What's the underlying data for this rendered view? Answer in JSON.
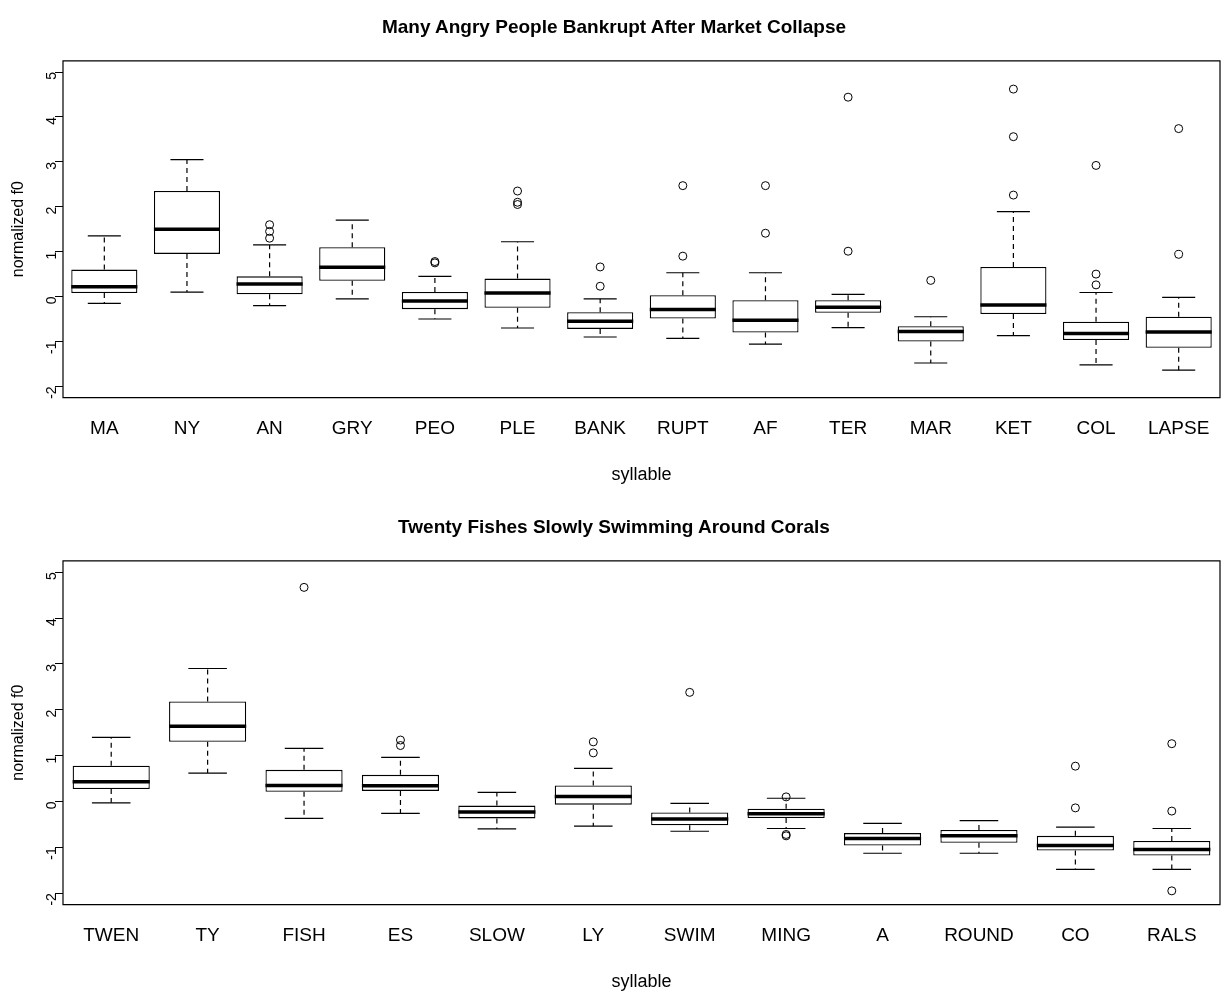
{
  "chart_data": [
    {
      "type": "box",
      "title": "Many Angry People Bankrupt After Market Collapse",
      "xlabel": "syllable",
      "ylabel": "normalized f0",
      "categories": [
        "MA",
        "NY",
        "AN",
        "GRY",
        "PEO",
        "PLE",
        "BANK",
        "RUPT",
        "AF",
        "TER",
        "MAR",
        "KET",
        "COL",
        "LAPSE"
      ],
      "boxes": [
        {
          "low": -0.15,
          "q1": 0.08,
          "median": 0.22,
          "q3": 0.6,
          "high": 1.35
        },
        {
          "low": 0.1,
          "q1": 0.95,
          "median": 1.5,
          "q3": 2.35,
          "high": 3.05
        },
        {
          "low": -0.2,
          "q1": 0.05,
          "median": 0.28,
          "q3": 0.45,
          "high": 1.15,
          "outliers": [
            1.6,
            1.45,
            1.3
          ]
        },
        {
          "low": -0.05,
          "q1": 0.35,
          "median": 0.65,
          "q3": 1.1,
          "high": 1.7
        },
        {
          "low": -0.5,
          "q1": -0.28,
          "median": -0.1,
          "q3": 0.1,
          "high": 0.45,
          "outliers": [
            0.78,
            0.75
          ]
        },
        {
          "low": -0.7,
          "q1": -0.25,
          "median": 0.08,
          "q3": 0.4,
          "high": 1.22,
          "outliers": [
            2.35,
            2.1,
            2.05
          ]
        },
        {
          "low": -0.9,
          "q1": -0.72,
          "median": -0.55,
          "q3": -0.35,
          "high": -0.05,
          "outliers": [
            0.66,
            0.23
          ]
        },
        {
          "low": -0.93,
          "q1": -0.49,
          "median": -0.29,
          "q3": 0.03,
          "high": 0.53,
          "outliers": [
            2.47,
            0.9
          ]
        },
        {
          "low": -1.06,
          "q1": -0.8,
          "median": -0.53,
          "q3": -0.08,
          "high": 0.53,
          "outliers": [
            2.47,
            1.41
          ]
        },
        {
          "low": -0.69,
          "q1": -0.36,
          "median": -0.24,
          "q3": -0.08,
          "high": 0.05,
          "outliers": [
            4.44,
            1.01
          ]
        },
        {
          "low": -1.48,
          "q1": -1.0,
          "median": -0.78,
          "q3": -0.66,
          "high": -0.45,
          "outliers": [
            0.36
          ]
        },
        {
          "low": -0.87,
          "q1": -0.39,
          "median": -0.19,
          "q3": 0.66,
          "high": 1.89,
          "outliers": [
            4.62,
            3.56,
            2.26
          ]
        },
        {
          "low": -1.52,
          "q1": -0.97,
          "median": -0.82,
          "q3": -0.56,
          "high": 0.09,
          "outliers": [
            2.92,
            0.5,
            0.26
          ]
        },
        {
          "low": -1.64,
          "q1": -1.14,
          "median": -0.79,
          "q3": -0.45,
          "high": -0.02,
          "outliers": [
            3.74,
            0.94
          ]
        }
      ],
      "ylim": [
        -2.25,
        5.25
      ],
      "yticks": [
        -2,
        -1,
        0,
        1,
        2,
        3,
        4,
        5
      ],
      "grid": false,
      "legend": false
    },
    {
      "type": "box",
      "title": "Twenty Fishes Slowly Swimming Around Corals",
      "xlabel": "syllable",
      "ylabel": "normalized f0",
      "categories": [
        "TWEN",
        "TY",
        "FISH",
        "ES",
        "SLOW",
        "LY",
        "SWIM",
        "MING",
        "A",
        "ROUND",
        "CO",
        "RALS"
      ],
      "boxes": [
        {
          "low": -0.03,
          "q1": 0.27,
          "median": 0.43,
          "q3": 0.78,
          "high": 1.4
        },
        {
          "low": 0.62,
          "q1": 1.3,
          "median": 1.64,
          "q3": 2.18,
          "high": 2.9
        },
        {
          "low": -0.37,
          "q1": 0.21,
          "median": 0.35,
          "q3": 0.69,
          "high": 1.16,
          "outliers": [
            4.67
          ]
        },
        {
          "low": -0.26,
          "q1": 0.23,
          "median": 0.34,
          "q3": 0.58,
          "high": 0.96,
          "outliers": [
            1.34,
            1.22
          ]
        },
        {
          "low": -0.6,
          "q1": -0.37,
          "median": -0.23,
          "q3": -0.09,
          "high": 0.2
        },
        {
          "low": -0.54,
          "q1": -0.07,
          "median": 0.11,
          "q3": 0.35,
          "high": 0.72,
          "outliers": [
            1.3,
            1.06
          ]
        },
        {
          "low": -0.65,
          "q1": -0.52,
          "median": -0.38,
          "q3": -0.24,
          "high": -0.04,
          "outliers": [
            2.38
          ]
        },
        {
          "low": -0.59,
          "q1": -0.36,
          "median": -0.27,
          "q3": -0.16,
          "high": 0.07,
          "outliers": [
            0.1,
            -0.72,
            -0.75
          ]
        },
        {
          "low": -1.13,
          "q1": -0.96,
          "median": -0.81,
          "q3": -0.69,
          "high": -0.48
        },
        {
          "low": -1.13,
          "q1": -0.9,
          "median": -0.75,
          "q3": -0.62,
          "high": -0.42
        },
        {
          "low": -1.48,
          "q1": -1.07,
          "median": -0.96,
          "q3": -0.75,
          "high": -0.56,
          "outliers": [
            0.77,
            -0.14
          ]
        },
        {
          "low": -1.48,
          "q1": -1.18,
          "median": -1.05,
          "q3": -0.86,
          "high": -0.59,
          "outliers": [
            1.26,
            -0.21,
            -1.95
          ]
        }
      ],
      "ylim": [
        -2.25,
        5.25
      ],
      "yticks": [
        -2,
        -1,
        0,
        1,
        2,
        3,
        4,
        5
      ],
      "grid": false,
      "legend": false
    }
  ]
}
